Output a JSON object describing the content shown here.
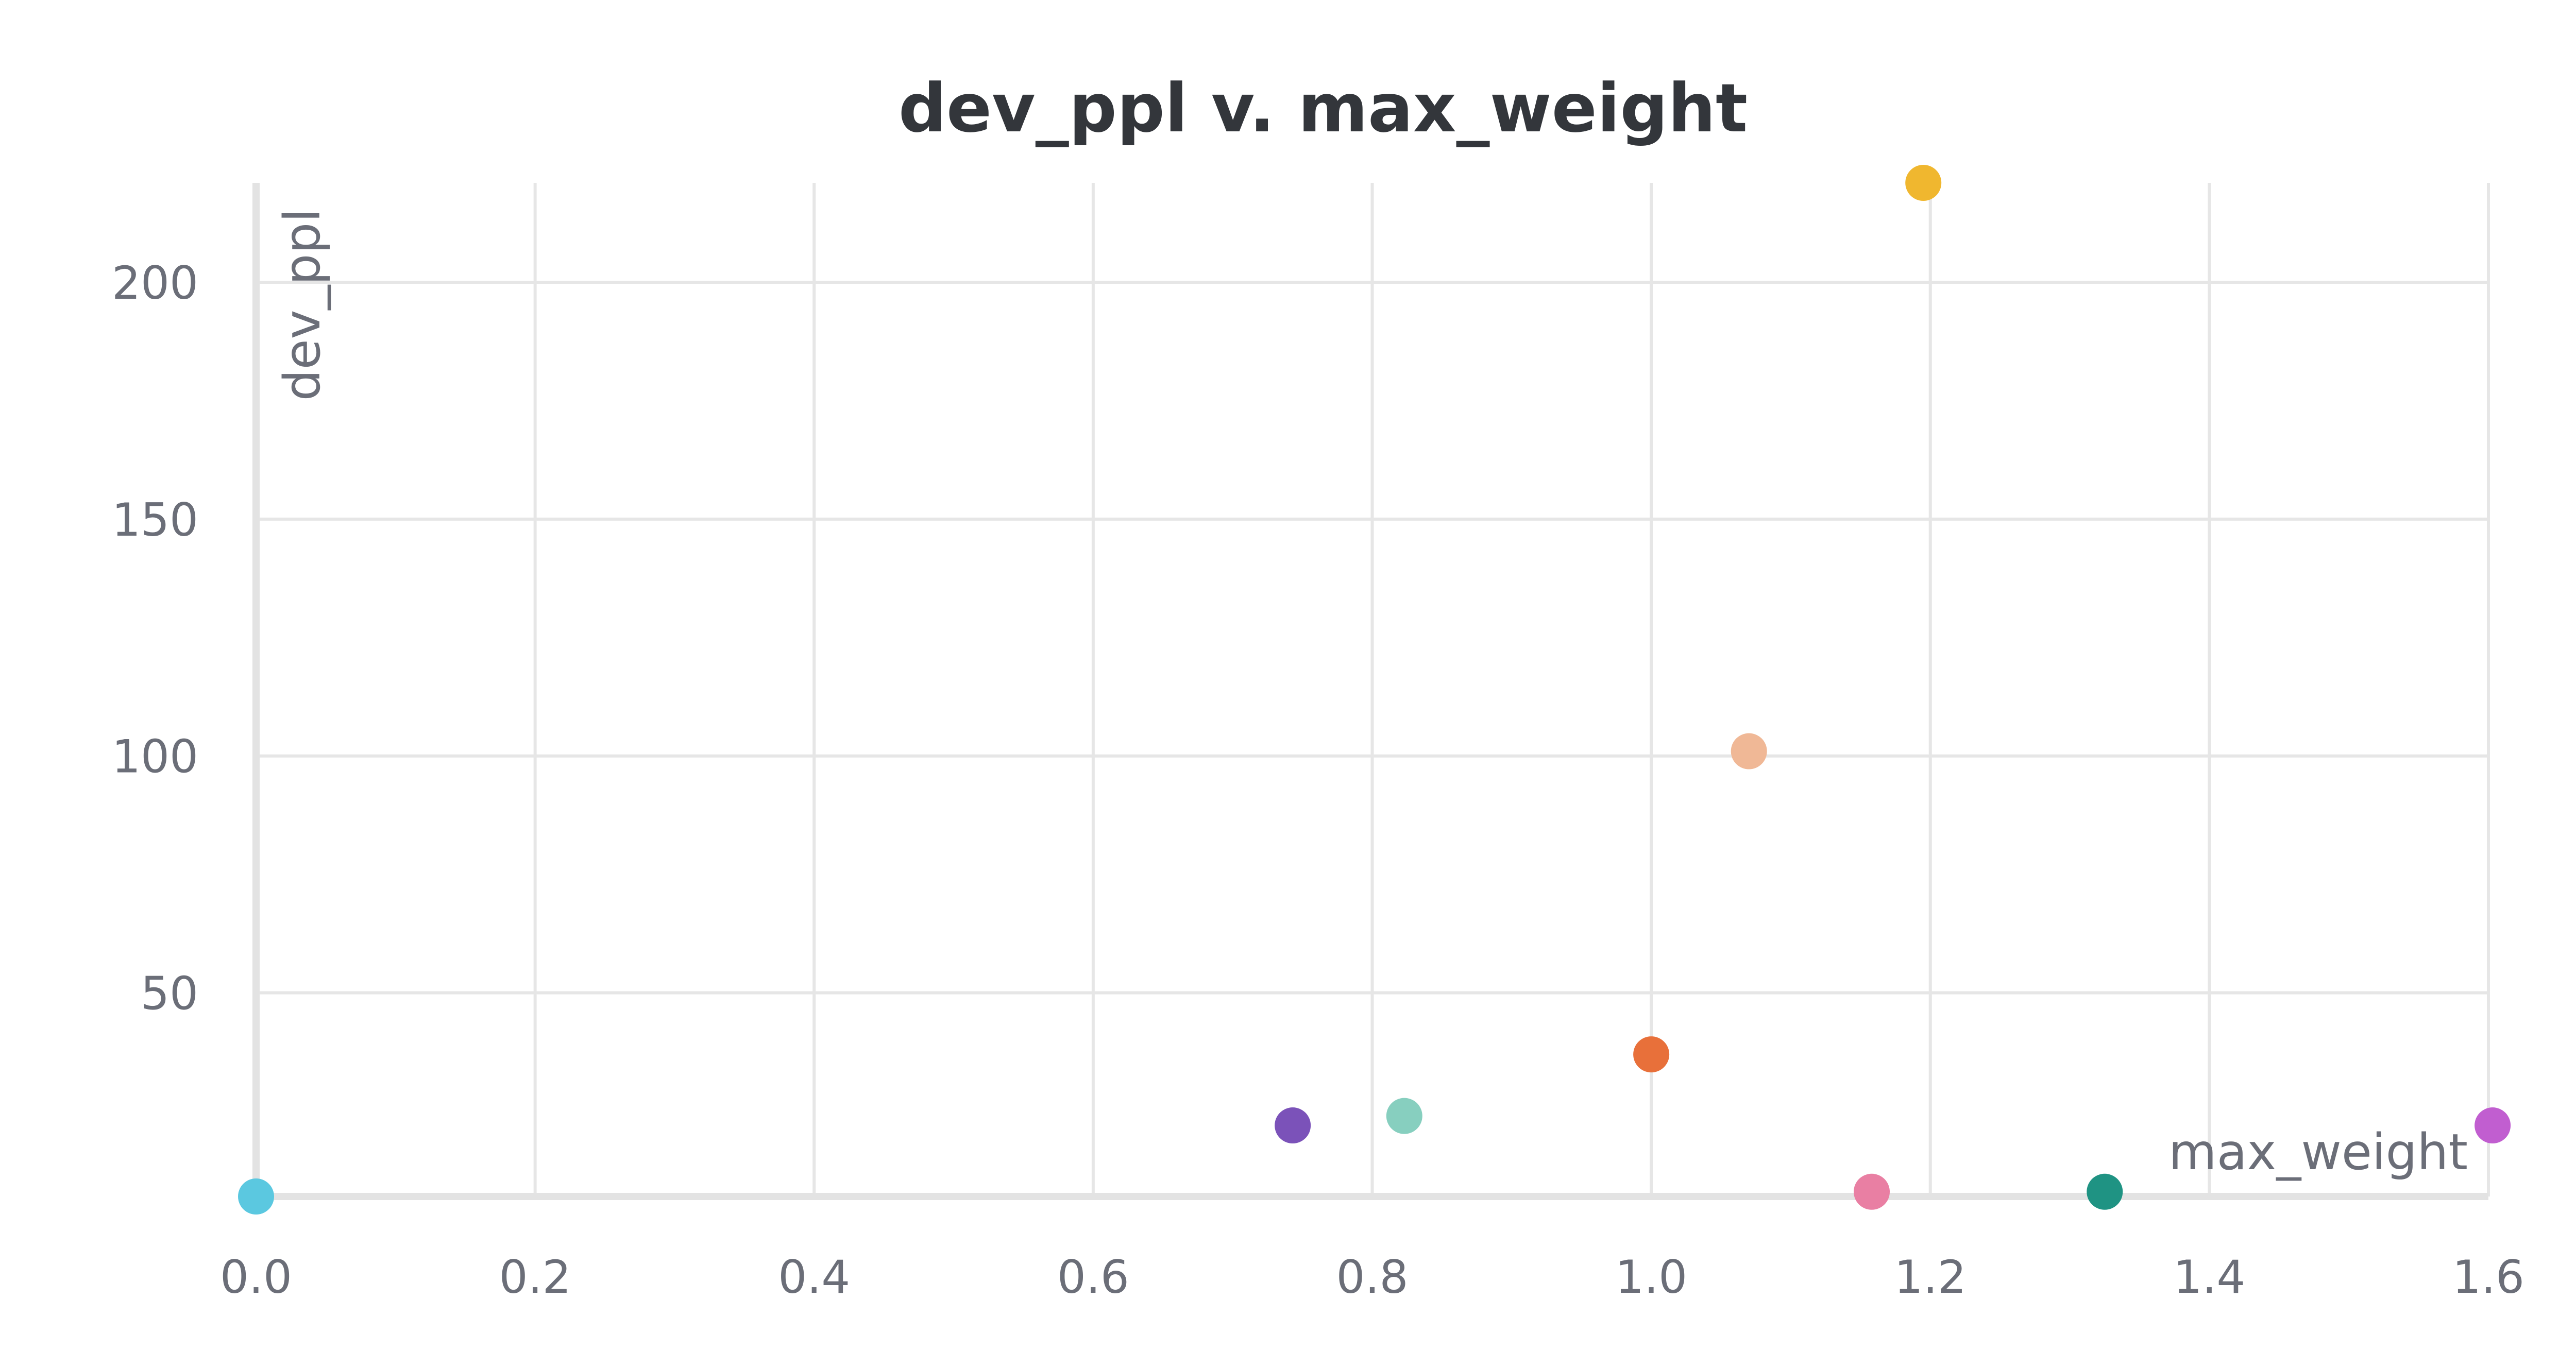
{
  "chart_data": {
    "type": "scatter",
    "title": "dev_ppl v. max_weight",
    "xlabel": "max_weight",
    "ylabel": "dev_ppl",
    "xlim": [
      0,
      1.6
    ],
    "ylim": [
      7,
      221
    ],
    "x_ticks": [
      "0.0",
      "0.2",
      "0.4",
      "0.6",
      "0.8",
      "1.0",
      "1.2",
      "1.4",
      "1.6"
    ],
    "y_ticks": [
      "50",
      "100",
      "150",
      "200"
    ],
    "grid": true,
    "points": [
      {
        "x": 0.0,
        "y": 7,
        "color": "#5bc8e0"
      },
      {
        "x": 0.743,
        "y": 22,
        "color": "#7b52b9"
      },
      {
        "x": 0.823,
        "y": 24,
        "color": "#87cfbf"
      },
      {
        "x": 1.0,
        "y": 37,
        "color": "#e8703a"
      },
      {
        "x": 1.07,
        "y": 101,
        "color": "#f0b896"
      },
      {
        "x": 1.158,
        "y": 8,
        "color": "#e97fa3"
      },
      {
        "x": 1.195,
        "y": 221,
        "color": "#f0b72f"
      },
      {
        "x": 1.325,
        "y": 8,
        "color": "#1f9383"
      },
      {
        "x": 1.603,
        "y": 22,
        "color": "#c15ed0"
      }
    ]
  }
}
